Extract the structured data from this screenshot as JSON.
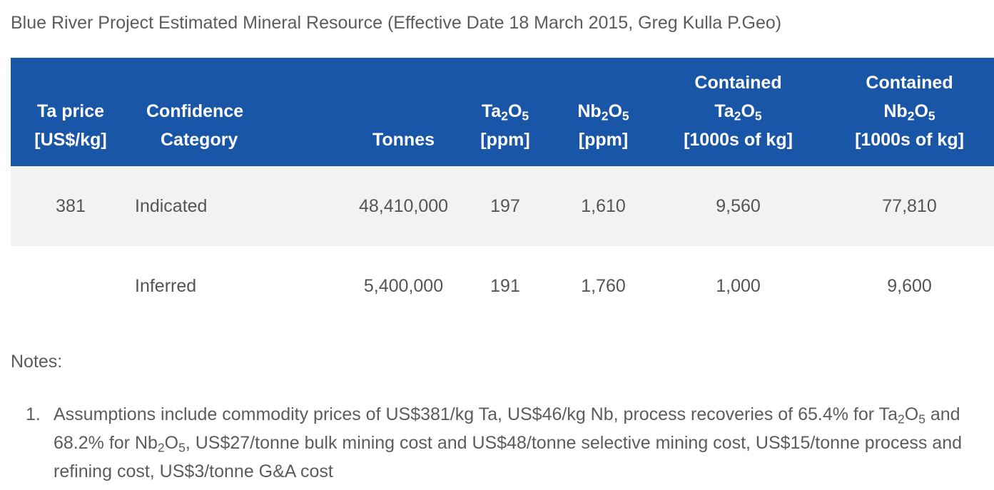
{
  "title": "Blue River Project Estimated Mineral Resource (Effective Date 18 March 2015, Greg Kulla P.Geo)",
  "table": {
    "headers": {
      "ta_price": [
        "Ta price",
        "[US$/kg]"
      ],
      "category": [
        "Confidence",
        "Category"
      ],
      "tonnes": [
        "Tonnes"
      ],
      "ta2o5_base": "Ta",
      "ta2o5_sub1": "2",
      "ta2o5_mid": "O",
      "ta2o5_sub2": "5",
      "ta2o5_unit": "[ppm]",
      "nb2o5_base": "Nb",
      "nb2o5_sub1": "2",
      "nb2o5_mid": "O",
      "nb2o5_sub2": "5",
      "nb2o5_unit": "[ppm]",
      "contained_label": "Contained",
      "contained_unit": "[1000s of kg]"
    },
    "rows": [
      {
        "ta_price": "381",
        "category": "Indicated",
        "tonnes": "48,410,000",
        "ta2o5": "197",
        "nb2o5": "1,610",
        "contained_ta2o5": "9,560",
        "contained_nb2o5": "77,810"
      },
      {
        "ta_price": "",
        "category": "Inferred",
        "tonnes": "5,400,000",
        "ta2o5": "191",
        "nb2o5": "1,760",
        "contained_ta2o5": "1,000",
        "contained_nb2o5": "9,600"
      }
    ]
  },
  "notes": {
    "label": "Notes:",
    "items": [
      {
        "num": "1.",
        "part1": "Assumptions include commodity prices of US$381/kg Ta, US$46/kg Nb, process recoveries of 65.4% for ",
        "ta": "Ta",
        "sub_a": "2",
        "o_a": "O",
        "sub_b": "5",
        "part2": " and 68.2% for ",
        "nb": "Nb",
        "sub_c": "2",
        "o_b": "O",
        "sub_d": "5",
        "part3": ", US$27/tonne bulk mining cost and US$48/tonne selective mining cost, US$15/tonne process and refining cost, US$3/tonne G&A cost"
      }
    ]
  }
}
